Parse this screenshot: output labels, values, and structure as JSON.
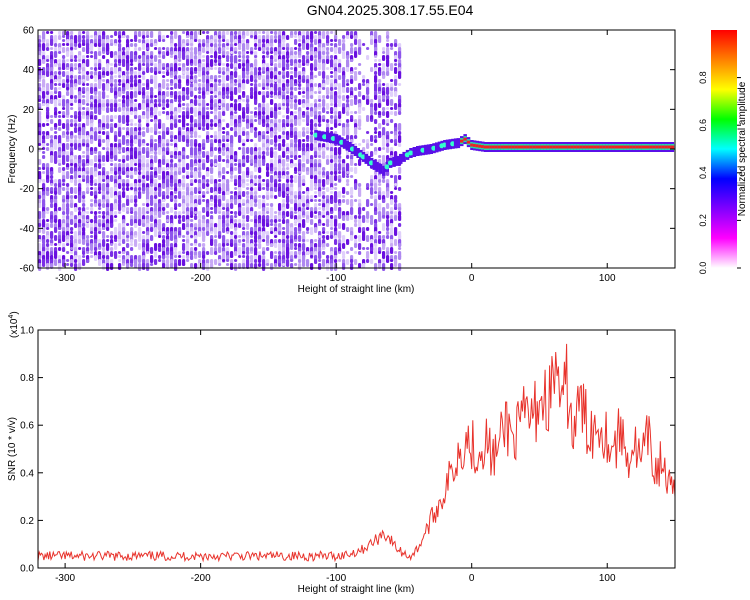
{
  "title": "GN04.2025.308.17.55.E04",
  "chart_data": [
    {
      "type": "heatmap",
      "xlabel": "Height of straight line (km)",
      "ylabel": "Frequency (Hz)",
      "xlim": [
        -320,
        150
      ],
      "ylim": [
        -60,
        60
      ],
      "xticks": [
        -300,
        -200,
        -100,
        0,
        100
      ],
      "xtick_labels": [
        "-300",
        "-200",
        "-100",
        "0",
        "100"
      ],
      "yticks": [
        -60,
        -40,
        -20,
        0,
        20,
        40,
        60
      ],
      "ytick_labels": [
        "-60",
        "-40",
        "-20",
        "0",
        "20",
        "40",
        "60"
      ],
      "noise_region_km": [
        -320,
        -53
      ],
      "trace": {
        "x": [
          -115,
          -100,
          -90,
          -80,
          -70,
          -65,
          -60,
          -55,
          -50,
          -45,
          -40,
          -30,
          -20,
          -10,
          -5,
          0,
          10,
          20,
          50,
          100,
          150
        ],
        "y": [
          7,
          5,
          1,
          -4,
          -9,
          -11,
          -7,
          -6,
          -4,
          -2,
          -1,
          0,
          2,
          3,
          5,
          2,
          1,
          1,
          1,
          1,
          1
        ]
      },
      "colorbar": {
        "label": "Normalized spectral amplitude",
        "ticks": [
          0.0,
          0.2,
          0.4,
          0.6,
          0.8
        ],
        "tick_labels": [
          "0.0",
          "0.2",
          "0.4",
          "0.6",
          "0.8"
        ],
        "range": [
          0,
          1
        ],
        "colors": [
          "#ffffff",
          "#ff00ff",
          "#8000ff",
          "#0000ff",
          "#00ffff",
          "#00ff00",
          "#ffff00",
          "#ff8000",
          "#ff0000"
        ]
      }
    },
    {
      "type": "line",
      "xlabel": "Height of straight line (km)",
      "ylabel": "SNR (10 * v/v)",
      "exponent_label": "(x10",
      "exponent": "4",
      "exponent_close": ")",
      "xlim": [
        -320,
        150
      ],
      "ylim": [
        0,
        1.0
      ],
      "xticks": [
        -300,
        -200,
        -100,
        0,
        100
      ],
      "xtick_labels": [
        "-300",
        "-200",
        "-100",
        "0",
        "100"
      ],
      "yticks": [
        0.0,
        0.2,
        0.4,
        0.6,
        0.8,
        1.0
      ],
      "ytick_labels": [
        "0.0",
        "0.2",
        "0.4",
        "0.6",
        "0.8",
        "1.0"
      ],
      "color": "#e8332c",
      "series": [
        {
          "x": [
            -320,
            -300,
            -250,
            -200,
            -150,
            -100,
            -90,
            -80,
            -70,
            -65,
            -60,
            -55,
            -50,
            -45,
            -40,
            -35,
            -30,
            -25,
            -20,
            -15,
            -10,
            -5,
            0,
            5,
            10,
            15,
            20,
            25,
            30,
            35,
            40,
            45,
            50,
            55,
            60,
            63,
            66,
            70,
            75,
            80,
            85,
            90,
            95,
            100,
            105,
            110,
            115,
            120,
            125,
            130,
            135,
            140,
            145,
            150
          ],
          "y": [
            0.05,
            0.05,
            0.05,
            0.05,
            0.05,
            0.05,
            0.06,
            0.08,
            0.12,
            0.15,
            0.12,
            0.08,
            0.06,
            0.05,
            0.08,
            0.14,
            0.2,
            0.26,
            0.32,
            0.4,
            0.48,
            0.55,
            0.52,
            0.48,
            0.55,
            0.46,
            0.5,
            0.62,
            0.55,
            0.58,
            0.65,
            0.62,
            0.72,
            0.7,
            0.76,
            0.9,
            0.62,
            0.78,
            0.55,
            0.7,
            0.6,
            0.58,
            0.62,
            0.55,
            0.5,
            0.58,
            0.46,
            0.52,
            0.44,
            0.55,
            0.4,
            0.45,
            0.35,
            0.3
          ]
        }
      ]
    }
  ]
}
